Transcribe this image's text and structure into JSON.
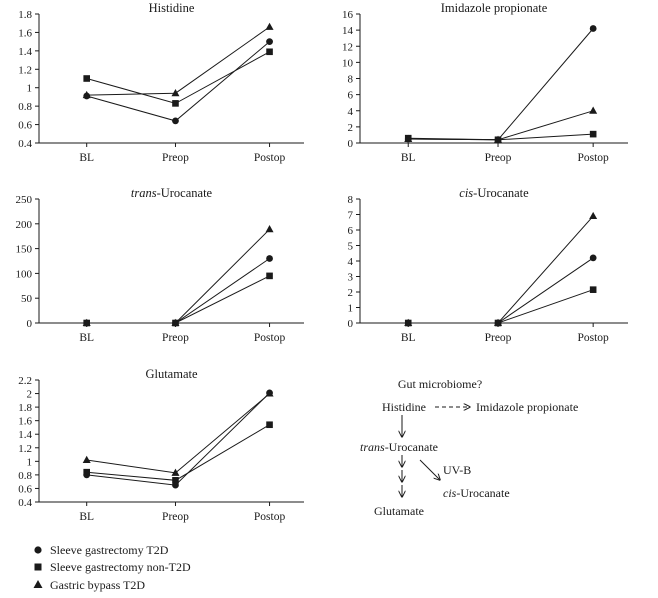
{
  "chart_data": [
    {
      "type": "line",
      "title": "Histidine",
      "title_parts": [
        {
          "text": "Histidine",
          "italic": false
        }
      ],
      "categories": [
        "BL",
        "Preop",
        "Postop"
      ],
      "ylim": [
        0.4,
        1.8
      ],
      "yticks": [
        "0.4",
        "0.6",
        "0.8",
        "1",
        "1.2",
        "1.4",
        "1.6",
        "1.8"
      ],
      "series": [
        {
          "name": "Sleeve gastrectomy T2D",
          "marker": "circle",
          "values": [
            0.91,
            0.64,
            1.5
          ]
        },
        {
          "name": "Sleeve gastrectomy non-T2D",
          "marker": "square",
          "values": [
            1.1,
            0.83,
            1.39
          ]
        },
        {
          "name": "Gastric bypass T2D",
          "marker": "triangle",
          "values": [
            0.92,
            0.94,
            1.66
          ]
        }
      ]
    },
    {
      "type": "line",
      "title": "Imidazole propionate",
      "title_parts": [
        {
          "text": "Imidazole propionate",
          "italic": false
        }
      ],
      "categories": [
        "BL",
        "Preop",
        "Postop"
      ],
      "ylim": [
        0,
        16
      ],
      "yticks": [
        "0",
        "2",
        "4",
        "6",
        "8",
        "10",
        "12",
        "14",
        "16"
      ],
      "series": [
        {
          "name": "Sleeve gastrectomy T2D",
          "marker": "circle",
          "values": [
            0.5,
            0.4,
            14.2
          ]
        },
        {
          "name": "Sleeve gastrectomy non-T2D",
          "marker": "square",
          "values": [
            0.6,
            0.4,
            1.1
          ]
        },
        {
          "name": "Gastric bypass T2D",
          "marker": "triangle",
          "values": [
            0.5,
            0.4,
            4.0
          ]
        }
      ]
    },
    {
      "type": "line",
      "title": "trans-Urocanate",
      "title_parts": [
        {
          "text": "trans",
          "italic": true
        },
        {
          "text": "-Urocanate",
          "italic": false
        }
      ],
      "categories": [
        "BL",
        "Preop",
        "Postop"
      ],
      "ylim": [
        0,
        250
      ],
      "yticks": [
        "0",
        "50",
        "100",
        "150",
        "200",
        "250"
      ],
      "series": [
        {
          "name": "Sleeve gastrectomy T2D",
          "marker": "circle",
          "values": [
            0,
            0,
            130
          ]
        },
        {
          "name": "Sleeve gastrectomy non-T2D",
          "marker": "square",
          "values": [
            0,
            0,
            95
          ]
        },
        {
          "name": "Gastric bypass T2D",
          "marker": "triangle",
          "values": [
            0,
            0,
            189
          ]
        }
      ]
    },
    {
      "type": "line",
      "title": "cis-Urocanate",
      "title_parts": [
        {
          "text": "cis",
          "italic": true
        },
        {
          "text": "-Urocanate",
          "italic": false
        }
      ],
      "categories": [
        "BL",
        "Preop",
        "Postop"
      ],
      "ylim": [
        0,
        8
      ],
      "yticks": [
        "0",
        "1",
        "2",
        "3",
        "4",
        "5",
        "6",
        "7",
        "8"
      ],
      "series": [
        {
          "name": "Sleeve gastrectomy T2D",
          "marker": "circle",
          "values": [
            0,
            0,
            4.2
          ]
        },
        {
          "name": "Sleeve gastrectomy non-T2D",
          "marker": "square",
          "values": [
            0,
            0,
            2.15
          ]
        },
        {
          "name": "Gastric bypass T2D",
          "marker": "triangle",
          "values": [
            0,
            0,
            6.9
          ]
        }
      ]
    },
    {
      "type": "line",
      "title": "Glutamate",
      "title_parts": [
        {
          "text": "Glutamate",
          "italic": false
        }
      ],
      "categories": [
        "BL",
        "Preop",
        "Postop"
      ],
      "ylim": [
        0.4,
        2.2
      ],
      "yticks": [
        "0.4",
        "0.6",
        "0.8",
        "1",
        "1.2",
        "1.4",
        "1.6",
        "1.8",
        "2",
        "2.2"
      ],
      "series": [
        {
          "name": "Sleeve gastrectomy T2D",
          "marker": "circle",
          "values": [
            0.8,
            0.65,
            2.01
          ]
        },
        {
          "name": "Sleeve gastrectomy non-T2D",
          "marker": "square",
          "values": [
            0.84,
            0.72,
            1.54
          ]
        },
        {
          "name": "Gastric bypass T2D",
          "marker": "triangle",
          "values": [
            1.02,
            0.83,
            2.0
          ]
        }
      ]
    }
  ],
  "legend": [
    {
      "marker": "circle",
      "label": "Sleeve gastrectomy T2D"
    },
    {
      "marker": "square",
      "label": "Sleeve gastrectomy non-T2D"
    },
    {
      "marker": "triangle",
      "label": "Gastric bypass T2D"
    }
  ],
  "pathway": {
    "question": "Gut microbiome?",
    "histidine": "Histidine",
    "imidazole": "Imidazole propionate",
    "trans_italic": "trans",
    "trans_rest": "-Urocanate",
    "uvb": "UV-B",
    "cis_italic": "cis",
    "cis_rest": "-Urocanate",
    "glutamate": "Glutamate"
  },
  "colors": {
    "ink": "#1a1a1a",
    "background": "#ffffff"
  }
}
